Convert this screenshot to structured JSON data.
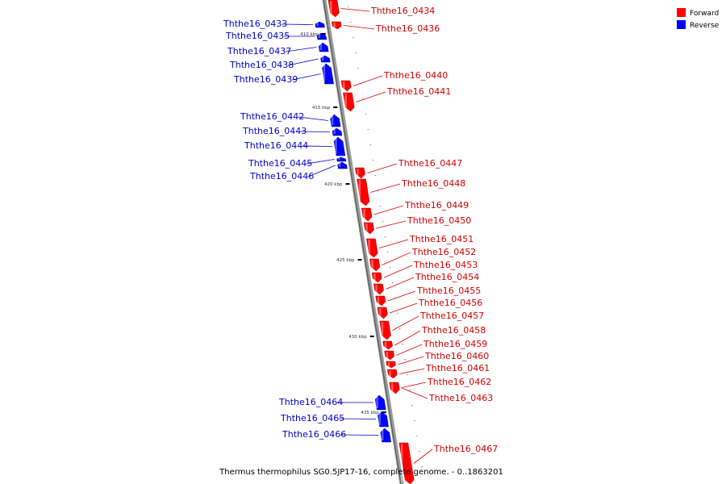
{
  "caption": "Thermus thermophilus SG0.5JP17-16, complete genome. - 0..1863201",
  "legend": [
    {
      "label": "Forward",
      "color": "#ff0000"
    },
    {
      "label": "Reverse",
      "color": "#0000ff"
    }
  ],
  "colors": {
    "forward": "#ff0000",
    "reverse": "#0000ff",
    "forward_label": "#d40000",
    "reverse_label": "#0000c8",
    "backbone": "#8a8a8a"
  },
  "ticks": [
    {
      "label": "410 kbp"
    },
    {
      "label": "415 kbp"
    },
    {
      "label": "420 kbp"
    },
    {
      "label": "425 kbp"
    },
    {
      "label": "430 kbp"
    },
    {
      "label": "435 kbp"
    }
  ],
  "genes": [
    {
      "name": "Ththe16_0434",
      "strand": "forward"
    },
    {
      "name": "Ththe16_0433",
      "strand": "reverse"
    },
    {
      "name": "Ththe16_0436",
      "strand": "forward"
    },
    {
      "name": "Ththe16_0435",
      "strand": "reverse"
    },
    {
      "name": "Ththe16_0437",
      "strand": "reverse"
    },
    {
      "name": "Ththe16_0438",
      "strand": "reverse"
    },
    {
      "name": "Ththe16_0439",
      "strand": "reverse"
    },
    {
      "name": "Ththe16_0440",
      "strand": "forward"
    },
    {
      "name": "Ththe16_0441",
      "strand": "forward"
    },
    {
      "name": "Ththe16_0442",
      "strand": "reverse"
    },
    {
      "name": "Ththe16_0443",
      "strand": "reverse"
    },
    {
      "name": "Ththe16_0444",
      "strand": "reverse"
    },
    {
      "name": "Ththe16_0445",
      "strand": "reverse"
    },
    {
      "name": "Ththe16_0446",
      "strand": "reverse"
    },
    {
      "name": "Ththe16_0447",
      "strand": "forward"
    },
    {
      "name": "Ththe16_0448",
      "strand": "forward"
    },
    {
      "name": "Ththe16_0449",
      "strand": "forward"
    },
    {
      "name": "Ththe16_0450",
      "strand": "forward"
    },
    {
      "name": "Ththe16_0451",
      "strand": "forward"
    },
    {
      "name": "Ththe16_0452",
      "strand": "forward"
    },
    {
      "name": "Ththe16_0453",
      "strand": "forward"
    },
    {
      "name": "Ththe16_0454",
      "strand": "forward"
    },
    {
      "name": "Ththe16_0455",
      "strand": "forward"
    },
    {
      "name": "Ththe16_0456",
      "strand": "forward"
    },
    {
      "name": "Ththe16_0457",
      "strand": "forward"
    },
    {
      "name": "Ththe16_0458",
      "strand": "forward"
    },
    {
      "name": "Ththe16_0459",
      "strand": "forward"
    },
    {
      "name": "Ththe16_0460",
      "strand": "forward"
    },
    {
      "name": "Ththe16_0461",
      "strand": "forward"
    },
    {
      "name": "Ththe16_0462",
      "strand": "forward"
    },
    {
      "name": "Ththe16_0463",
      "strand": "forward"
    },
    {
      "name": "Ththe16_0464",
      "strand": "reverse"
    },
    {
      "name": "Ththe16_0465",
      "strand": "reverse"
    },
    {
      "name": "Ththe16_0466",
      "strand": "reverse"
    },
    {
      "name": "Ththe16_0467",
      "strand": "forward"
    }
  ]
}
